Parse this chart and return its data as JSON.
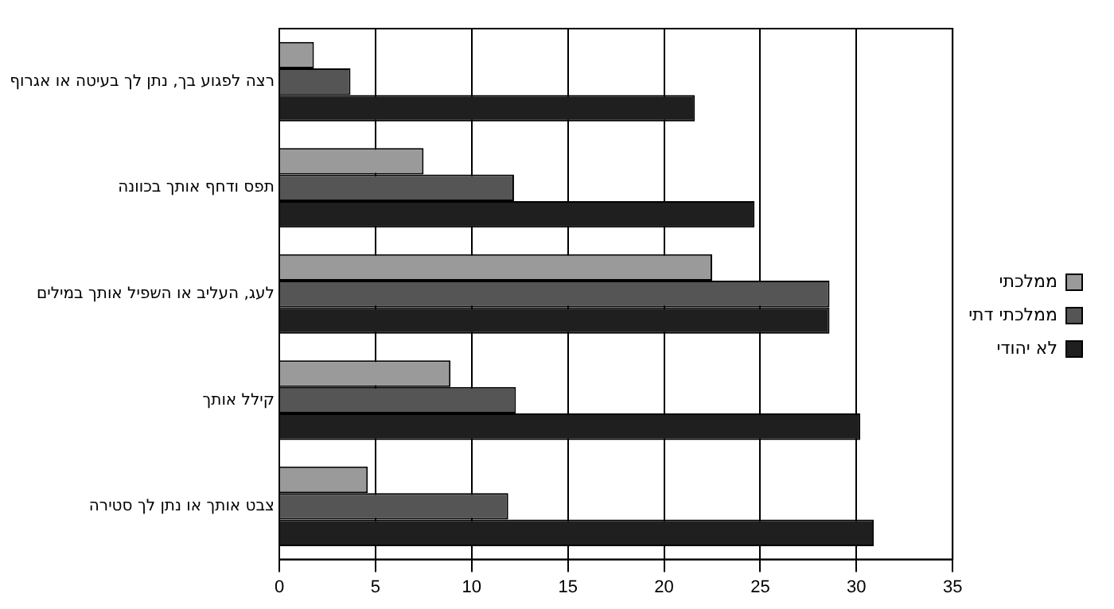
{
  "chart_data": {
    "type": "bar",
    "orientation": "horizontal",
    "categories": [
      "רצה לפגוע בך, נתן לך בעיטה או אגרוף",
      "תפס ודחף אותך בכוונה",
      "לעג, העליב או השפיל אותך במילים",
      "קילל אותך",
      "צבט אותך או נתן לך סטירה"
    ],
    "series": [
      {
        "name": "ממלכתי",
        "color": "#9a9a9a",
        "values": [
          1.8,
          7.5,
          22.5,
          8.9,
          4.6
        ]
      },
      {
        "name": "ממלכתי דתי",
        "color": "#555555",
        "values": [
          3.7,
          12.2,
          28.6,
          12.3,
          11.9
        ]
      },
      {
        "name": "לא יהודי",
        "color": "#1f1f1f",
        "values": [
          21.6,
          24.7,
          28.6,
          30.2,
          30.9
        ]
      }
    ],
    "xlim": [
      0,
      35
    ],
    "xticks": [
      0,
      5,
      10,
      15,
      20,
      25,
      30,
      35
    ],
    "grid": "x",
    "legend": "right"
  }
}
